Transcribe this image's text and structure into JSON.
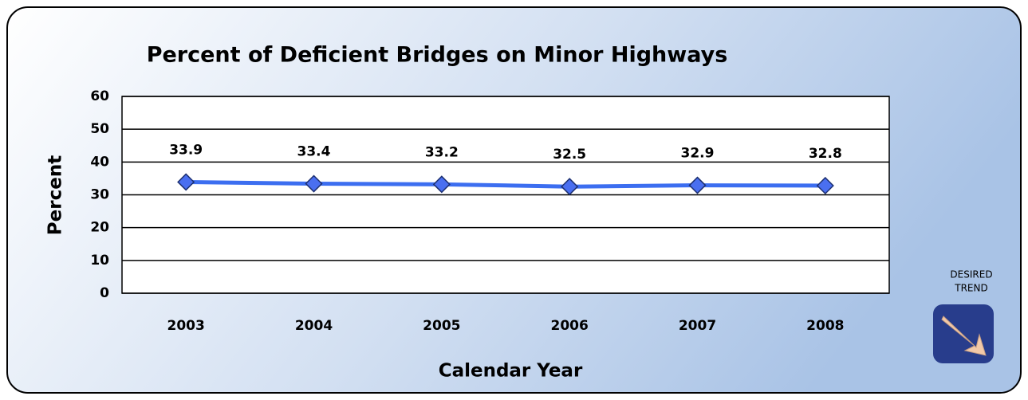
{
  "chart_data": {
    "type": "line",
    "title": "Percent of Deficient Bridges on Minor Highways",
    "x_label": "Calendar Year",
    "y_label": "Percent",
    "annotation": [
      "DESIRED",
      "TREND"
    ],
    "categories": [
      "2003",
      "2004",
      "2005",
      "2006",
      "2007",
      "2008"
    ],
    "series": [
      {
        "name": "Percent",
        "color": "#3c6ef0",
        "values": [
          33.9,
          33.4,
          33.2,
          32.5,
          32.9,
          32.8
        ]
      }
    ],
    "ylim": [
      0,
      60
    ],
    "yticks": [
      0,
      10,
      20,
      30,
      40,
      50,
      60
    ],
    "grid": true
  }
}
